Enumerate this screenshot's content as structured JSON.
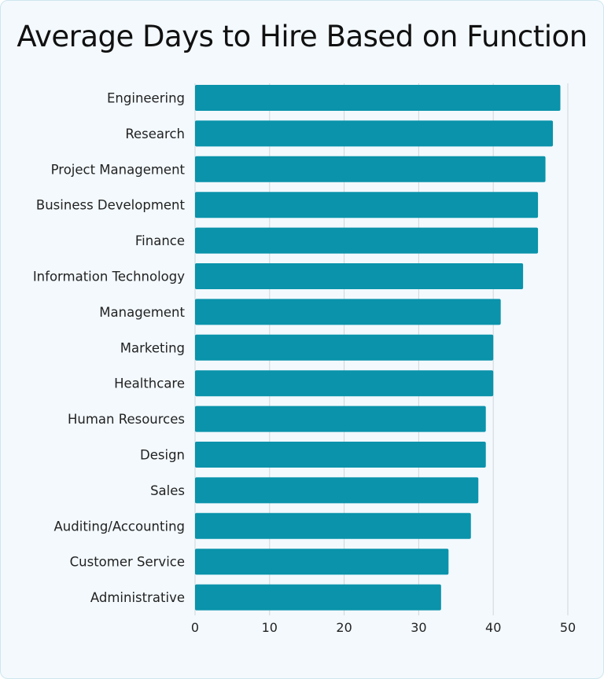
{
  "chart_data": {
    "type": "bar",
    "orientation": "horizontal",
    "title": "Average Days to Hire Based on Function",
    "xlabel": "",
    "ylabel": "",
    "categories": [
      "Engineering",
      "Research",
      "Project Management",
      "Business Development",
      "Finance",
      "Information Technology",
      "Management",
      "Marketing",
      "Healthcare",
      "Human Resources",
      "Design",
      "Sales",
      "Auditing/Accounting",
      "Customer Service",
      "Administrative"
    ],
    "values": [
      49,
      48,
      47,
      46,
      46,
      44,
      41,
      40,
      40,
      39,
      39,
      38,
      37,
      34,
      33
    ],
    "xlim": [
      0,
      50
    ],
    "xticks": [
      0,
      10,
      20,
      30,
      40,
      50
    ],
    "grid": true,
    "bar_color": "#0a93ab",
    "gridline_color": "#cfd6da",
    "background": "#f3f9fd"
  }
}
